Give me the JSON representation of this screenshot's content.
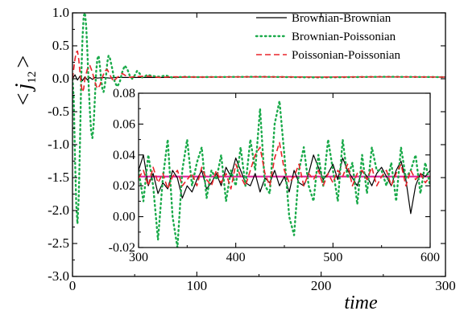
{
  "chart_data": {
    "type": "line",
    "xlabel": "time",
    "ylabel": "< j12 >",
    "ylabel_parts": {
      "open": "<",
      "j": "j",
      "sub": "12",
      "close": ">"
    },
    "main": {
      "xlim": [
        0,
        300
      ],
      "ylim": [
        -3.0,
        1.0
      ],
      "xticks": [
        0,
        100,
        200,
        300
      ],
      "xtick_labels": [
        "0",
        "100",
        "200",
        "300"
      ],
      "yticks": [
        1.0,
        0.5,
        0.0,
        -0.5,
        -1.0,
        -1.5,
        -2.0,
        -2.5,
        -3.0
      ],
      "ytick_labels": [
        "1.0",
        "0.5",
        "0.0",
        "-0.5",
        "-1.0",
        "-1.5",
        "-2.0",
        "-2.5",
        "-3.0"
      ],
      "series": [
        {
          "name": "Brownian-Brownian",
          "color": "#000000",
          "dash": "solid",
          "x": [
            0,
            2,
            4,
            6,
            8,
            10,
            12,
            14,
            16,
            18,
            20,
            25,
            30,
            35,
            40,
            50,
            60,
            80,
            100,
            150,
            200,
            250,
            300
          ],
          "y": [
            0.0,
            0.06,
            -0.02,
            0.04,
            -0.03,
            0.03,
            -0.02,
            0.02,
            -0.01,
            0.02,
            0.01,
            0.02,
            0.01,
            0.02,
            0.02,
            0.02,
            0.02,
            0.02,
            0.025,
            0.025,
            0.025,
            0.025,
            0.025
          ]
        },
        {
          "name": "Brownian-Poissonian",
          "color": "#1aaa4a",
          "dash": "dotted",
          "x": [
            0,
            1,
            2,
            3,
            4,
            5,
            6,
            7,
            8,
            9,
            10,
            11,
            12,
            13,
            14,
            15,
            16,
            17,
            18,
            19,
            20,
            21,
            22,
            23,
            24,
            25,
            26,
            27,
            28,
            29,
            30,
            32,
            34,
            36,
            38,
            40,
            42,
            44,
            46,
            48,
            50,
            52,
            54,
            56,
            58,
            60,
            65,
            70,
            75,
            80,
            90,
            100,
            150,
            200,
            250,
            300
          ],
          "y": [
            0.0,
            -0.3,
            -1.2,
            -1.9,
            -2.2,
            -1.8,
            -1.0,
            0.0,
            0.6,
            0.95,
            1.0,
            0.8,
            0.4,
            -0.1,
            -0.5,
            -0.8,
            -0.9,
            -0.7,
            -0.3,
            0.1,
            0.3,
            0.35,
            0.2,
            0.0,
            -0.15,
            -0.2,
            -0.1,
            0.05,
            0.25,
            0.35,
            0.32,
            0.15,
            -0.05,
            -0.12,
            -0.05,
            0.1,
            0.2,
            0.15,
            0.05,
            0.0,
            0.05,
            0.12,
            0.08,
            0.02,
            0.03,
            0.06,
            0.04,
            0.03,
            0.05,
            0.02,
            0.03,
            0.025,
            0.03,
            0.02,
            0.03,
            0.025
          ]
        },
        {
          "name": "Poissonian-Poissonian",
          "color": "#e8242a",
          "dash": "dashed",
          "x": [
            0,
            1,
            2,
            3,
            4,
            5,
            6,
            7,
            8,
            9,
            10,
            12,
            14,
            16,
            18,
            20,
            22,
            24,
            26,
            28,
            30,
            33,
            36,
            40,
            45,
            50,
            60,
            70,
            80,
            100,
            150,
            200,
            250,
            300
          ],
          "y": [
            0.0,
            0.15,
            0.3,
            0.4,
            0.42,
            0.3,
            0.1,
            -0.1,
            -0.2,
            -0.15,
            0.0,
            0.15,
            0.2,
            0.1,
            -0.05,
            -0.15,
            -0.1,
            0.02,
            0.12,
            0.14,
            0.06,
            -0.04,
            0.02,
            0.08,
            0.02,
            0.03,
            0.04,
            0.02,
            0.03,
            0.025,
            0.03,
            0.025,
            0.03,
            0.025
          ]
        }
      ]
    },
    "inset": {
      "xlim": [
        300,
        600
      ],
      "ylim": [
        -0.02,
        0.08
      ],
      "xticks": [
        300,
        400,
        500,
        600
      ],
      "xtick_labels": [
        "300",
        "400",
        "500",
        "600"
      ],
      "yticks": [
        0.08,
        0.06,
        0.04,
        0.02,
        0.0,
        -0.02
      ],
      "ytick_labels": [
        "0.08",
        "0.06",
        "0.04",
        "0.02",
        "0.00",
        "-0.02"
      ],
      "mean_line": {
        "y": 0.026,
        "color": "#e0209a"
      },
      "series": [
        {
          "name": "Brownian-Brownian",
          "color": "#000000",
          "dash": "solid",
          "x": [
            300,
            305,
            310,
            315,
            320,
            325,
            330,
            335,
            340,
            345,
            350,
            355,
            360,
            365,
            370,
            375,
            380,
            385,
            390,
            395,
            400,
            405,
            410,
            415,
            420,
            425,
            430,
            435,
            440,
            445,
            450,
            455,
            460,
            465,
            470,
            475,
            480,
            485,
            490,
            495,
            500,
            505,
            510,
            515,
            520,
            525,
            530,
            535,
            540,
            545,
            550,
            555,
            560,
            565,
            570,
            575,
            580,
            585,
            590,
            595,
            600
          ],
          "y": [
            0.03,
            0.04,
            0.02,
            0.028,
            0.015,
            0.022,
            0.018,
            0.03,
            0.025,
            0.012,
            0.02,
            0.016,
            0.024,
            0.03,
            0.018,
            0.022,
            0.028,
            0.02,
            0.032,
            0.026,
            0.038,
            0.03,
            0.022,
            0.02,
            0.028,
            0.016,
            0.025,
            0.022,
            0.03,
            0.02,
            0.026,
            0.016,
            0.03,
            0.022,
            0.02,
            0.028,
            0.04,
            0.032,
            0.024,
            0.028,
            0.034,
            0.024,
            0.038,
            0.03,
            0.025,
            0.02,
            0.03,
            0.026,
            0.02,
            0.028,
            0.032,
            0.026,
            0.02,
            0.03,
            0.036,
            0.024,
            0.002,
            0.02,
            0.028,
            0.026,
            0.03
          ]
        },
        {
          "name": "Brownian-Poissonian",
          "color": "#1aaa4a",
          "dash": "dotted",
          "x": [
            300,
            305,
            310,
            315,
            320,
            325,
            330,
            335,
            340,
            345,
            350,
            355,
            360,
            365,
            370,
            375,
            380,
            385,
            390,
            395,
            400,
            405,
            410,
            415,
            420,
            425,
            430,
            435,
            440,
            445,
            450,
            455,
            460,
            465,
            470,
            475,
            480,
            485,
            490,
            495,
            500,
            505,
            510,
            515,
            520,
            525,
            530,
            535,
            540,
            545,
            550,
            555,
            560,
            565,
            570,
            575,
            580,
            585,
            590,
            595,
            600
          ],
          "y": [
            0.03,
            0.01,
            0.04,
            0.02,
            -0.015,
            0.025,
            0.05,
            0.0,
            -0.02,
            0.03,
            0.05,
            0.02,
            0.035,
            0.045,
            0.012,
            0.03,
            0.024,
            0.04,
            0.01,
            0.03,
            0.02,
            0.045,
            0.02,
            0.05,
            0.03,
            0.07,
            0.02,
            0.015,
            0.06,
            0.075,
            0.04,
            0.0,
            -0.012,
            0.03,
            0.045,
            0.02,
            0.01,
            0.04,
            0.02,
            0.05,
            0.03,
            0.01,
            0.05,
            0.025,
            0.035,
            0.008,
            0.04,
            0.015,
            0.045,
            0.03,
            0.03,
            0.02,
            0.035,
            0.01,
            0.045,
            0.025,
            0.03,
            0.04,
            0.015,
            0.035,
            0.02
          ]
        },
        {
          "name": "Poissonian-Poissonian",
          "color": "#e8242a",
          "dash": "dashed",
          "x": [
            300,
            305,
            310,
            315,
            320,
            325,
            330,
            335,
            340,
            345,
            350,
            355,
            360,
            365,
            370,
            375,
            380,
            385,
            390,
            395,
            400,
            405,
            410,
            415,
            420,
            425,
            430,
            435,
            440,
            445,
            450,
            455,
            460,
            465,
            470,
            475,
            480,
            485,
            490,
            495,
            500,
            505,
            510,
            515,
            520,
            525,
            530,
            535,
            540,
            545,
            550,
            555,
            560,
            565,
            570,
            575,
            580,
            585,
            590,
            595,
            600
          ],
          "y": [
            0.025,
            0.03,
            0.02,
            0.032,
            0.022,
            0.028,
            0.018,
            0.026,
            0.03,
            0.02,
            0.024,
            0.028,
            0.02,
            0.032,
            0.024,
            0.02,
            0.03,
            0.022,
            0.028,
            0.018,
            0.034,
            0.026,
            0.02,
            0.03,
            0.04,
            0.045,
            0.028,
            0.02,
            0.038,
            0.048,
            0.03,
            0.022,
            0.026,
            0.034,
            0.02,
            0.028,
            0.024,
            0.03,
            0.02,
            0.028,
            0.022,
            0.03,
            0.026,
            0.034,
            0.02,
            0.028,
            0.03,
            0.024,
            0.032,
            0.02,
            0.026,
            0.03,
            0.02,
            0.028,
            0.034,
            0.02,
            0.03,
            0.024,
            0.028,
            0.022,
            0.026
          ]
        }
      ]
    },
    "legend": {
      "entries": [
        "Brownian-Brownian",
        "Brownian-Poissonian",
        "Poissonian-Poissonian"
      ]
    }
  }
}
